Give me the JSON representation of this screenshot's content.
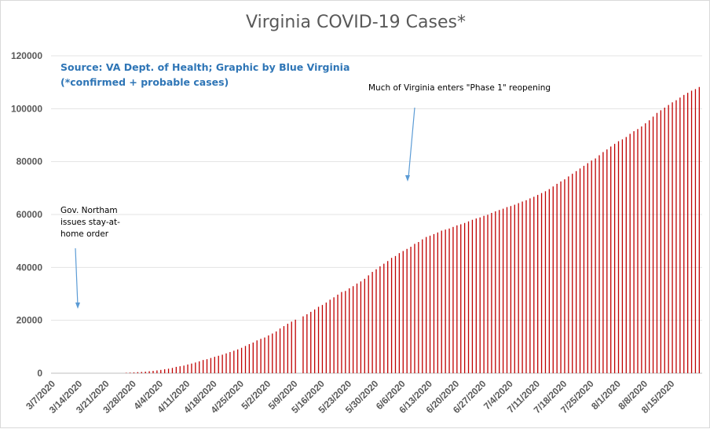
{
  "chart_data": {
    "type": "bar",
    "title": "Virginia COVID-19 Cases*",
    "source_note_line1": "Source: VA Dept. of Health; Graphic by Blue Virginia",
    "source_note_line2": "(*confirmed + probable cases)",
    "xlabel": "",
    "ylabel": "",
    "ylim": [
      0,
      120000
    ],
    "y_ticks": [
      0,
      20000,
      40000,
      60000,
      80000,
      100000,
      120000
    ],
    "grid": true,
    "legend": "none",
    "bar_color": "#c00000",
    "start_date": "3/7/2020",
    "end_date": "8/20/2020",
    "x_tick_labels": [
      "3/7/2020",
      "3/14/2020",
      "3/21/2020",
      "3/28/2020",
      "4/4/2020",
      "4/11/2020",
      "4/18/2020",
      "4/25/2020",
      "5/2/2020",
      "5/9/2020",
      "5/16/2020",
      "5/23/2020",
      "5/30/2020",
      "6/6/2020",
      "6/13/2020",
      "6/20/2020",
      "6/27/2020",
      "7/4/2020",
      "7/11/2020",
      "7/18/2020",
      "7/25/2020",
      "8/1/2020",
      "8/8/2020",
      "8/15/2020"
    ],
    "series": [
      {
        "values": [
          0,
          0,
          0,
          0,
          0,
          0,
          0,
          0,
          0,
          0,
          0,
          0,
          0,
          0,
          0,
          0,
          0,
          0,
          0,
          150,
          220,
          290,
          400,
          480,
          600,
          750,
          890,
          1050,
          1250,
          1500,
          1710,
          2000,
          2400,
          2640,
          2880,
          3300,
          3650,
          4050,
          4500,
          5000,
          5300,
          5750,
          6200,
          6600,
          7000,
          7500,
          8000,
          8500,
          9000,
          9600,
          10300,
          11000,
          11600,
          12400,
          13000,
          13500,
          14300,
          15000,
          15800,
          16900,
          17800,
          18700,
          19500,
          20250,
          0,
          21500,
          22300,
          23200,
          24100,
          25100,
          25800,
          26700,
          27800,
          28700,
          29700,
          30700,
          31100,
          32100,
          32900,
          33900,
          34700,
          35700,
          37000,
          38300,
          39300,
          40400,
          41400,
          42400,
          43600,
          44300,
          45400,
          46200,
          47000,
          47800,
          48900,
          49600,
          50600,
          51500,
          52000,
          52600,
          53200,
          53900,
          54300,
          54700,
          55300,
          55900,
          56300,
          56800,
          57400,
          58000,
          58500,
          58900,
          59500,
          59900,
          60600,
          61200,
          61700,
          62200,
          62800,
          63200,
          63700,
          64300,
          64900,
          65400,
          66100,
          66700,
          67400,
          68100,
          68800,
          69600,
          70600,
          71600,
          72500,
          73300,
          74400,
          75400,
          76400,
          77400,
          78400,
          79400,
          80400,
          81200,
          82400,
          83600,
          84600,
          85700,
          86700,
          87700,
          88400,
          89300,
          90500,
          91500,
          92300,
          93300,
          94500,
          95600,
          97000,
          98400,
          99400,
          100400,
          101400,
          102400,
          103200,
          104200,
          105200,
          106000,
          106800,
          107400,
          108200
        ]
      }
    ],
    "annotations": [
      {
        "lines": [
          "Gov. Northam",
          "issues stay-at-",
          "home order"
        ]
      },
      {
        "lines": [
          "Much of Virginia enters \"Phase 1\" reopening"
        ]
      }
    ]
  }
}
